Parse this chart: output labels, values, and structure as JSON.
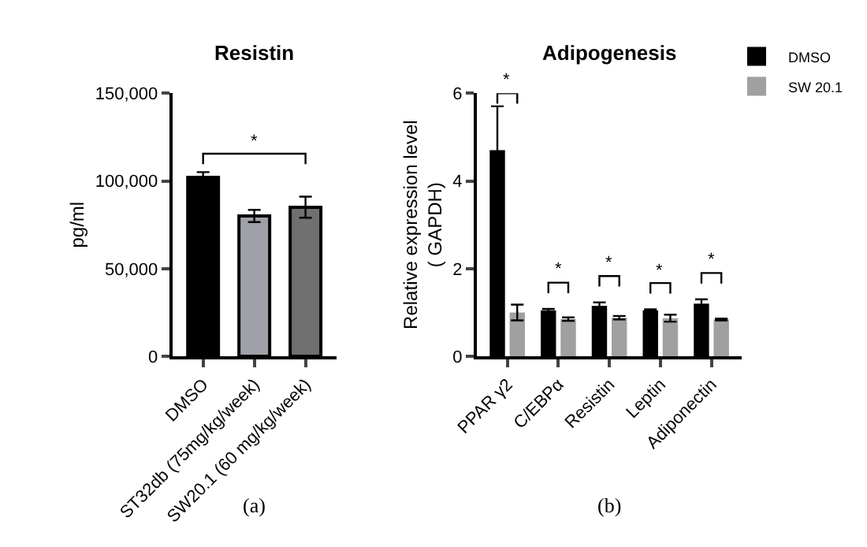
{
  "chart_data": [
    {
      "type": "bar",
      "title": "Resistin",
      "ylabel": "pg/ml",
      "categories": [
        "DMSO",
        "ST32db (75mg/kg/week)",
        "SW20.1 (60 mg/kg/week)"
      ],
      "values": [
        102000,
        80000,
        85000
      ],
      "errors": [
        3000,
        3500,
        6000
      ],
      "colors": [
        "#000000",
        "#a0a0a8",
        "#707070"
      ],
      "ylim": [
        0,
        150000
      ],
      "yticks": [
        0,
        {
          "value": 50000,
          "label": "50,000"
        },
        {
          "value": 100000,
          "label": "100,000"
        },
        {
          "value": 150000,
          "label": "150,000"
        }
      ],
      "annotations": [
        "*",
        "(a)"
      ]
    },
    {
      "type": "bar",
      "title": "Adipogenesis",
      "ylabel": "Relative expression level\n( GAPDH)",
      "categories": [
        "PPAR γ2",
        "C/EBPα",
        "Resistin",
        "Leptin",
        "Adiponectin"
      ],
      "series": [
        {
          "name": "DMSO",
          "color": "#000000",
          "values": [
            4.7,
            1.05,
            1.15,
            1.05,
            1.2
          ],
          "errors": [
            1.0,
            0.03,
            0.08,
            0.02,
            0.1
          ]
        },
        {
          "name": "SW 20.1",
          "color": "#a0a0a0",
          "values": [
            1.0,
            0.85,
            0.88,
            0.87,
            0.84
          ],
          "errors": [
            0.18,
            0.04,
            0.04,
            0.08,
            0.02
          ]
        }
      ],
      "ylim": [
        0,
        6
      ],
      "yticks": [
        0,
        2,
        4,
        6
      ],
      "legend": "top right",
      "annotations": [
        "*",
        "*",
        "*",
        "*",
        "*",
        "(b)"
      ]
    }
  ]
}
